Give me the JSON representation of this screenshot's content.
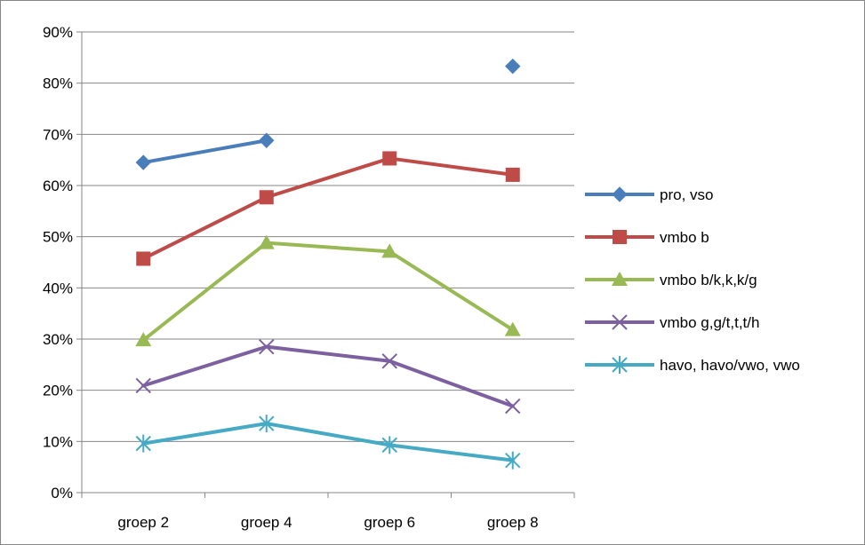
{
  "chart_data": {
    "type": "line",
    "title": "",
    "xlabel": "",
    "ylabel": "",
    "categories": [
      "groep 2",
      "groep 4",
      "groep 6",
      "groep 8"
    ],
    "ylim": [
      0,
      90
    ],
    "ytick_step": 10,
    "ytick_format": "percent",
    "grid": true,
    "legend_position": "right",
    "series": [
      {
        "name": "pro, vso",
        "color": "#4a7ebb",
        "marker": "diamond",
        "values": [
          64.5,
          68.8,
          null,
          83.3
        ]
      },
      {
        "name": "vmbo b",
        "color": "#be4b48",
        "marker": "square",
        "values": [
          45.7,
          57.7,
          65.3,
          62.1
        ]
      },
      {
        "name": "vmbo b/k,k,k/g",
        "color": "#98b954",
        "marker": "triangle",
        "values": [
          29.8,
          48.8,
          47.1,
          31.8
        ]
      },
      {
        "name": "vmbo g,g/t,t,t/h",
        "color": "#7d60a0",
        "marker": "x",
        "values": [
          20.9,
          28.5,
          25.7,
          16.9
        ]
      },
      {
        "name": "havo, havo/vwo, vwo",
        "color": "#46aac5",
        "marker": "star",
        "values": [
          9.6,
          13.5,
          9.3,
          6.3
        ]
      }
    ]
  }
}
